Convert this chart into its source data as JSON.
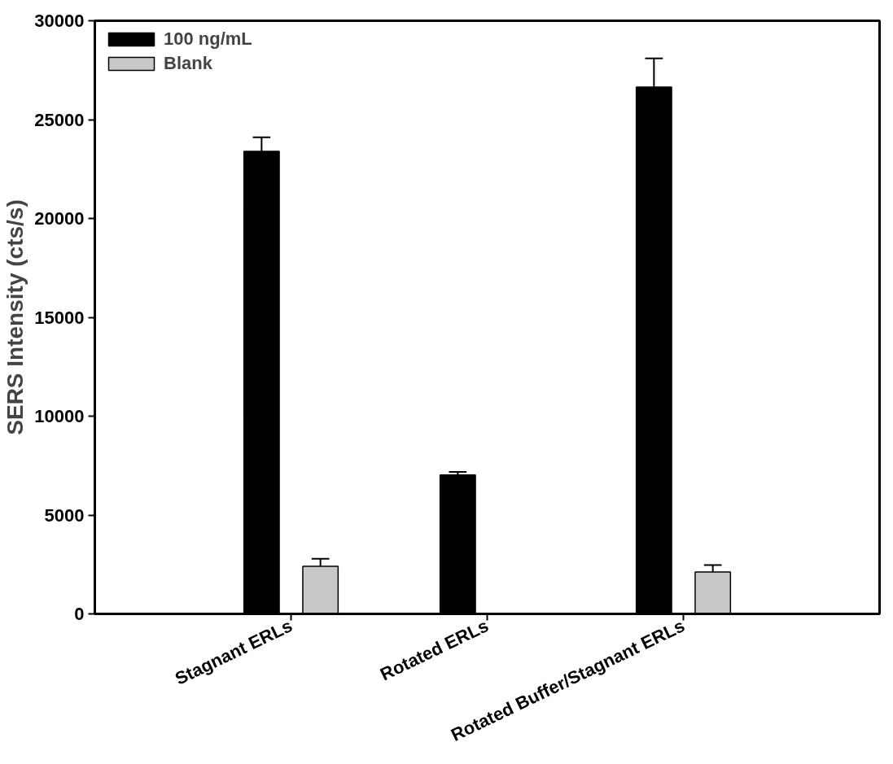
{
  "chart_data": {
    "type": "bar",
    "ylabel": "SERS Intensity (cts/s)",
    "categories": [
      "Stagnant ERLs",
      "Rotated ERLs",
      "Rotated Buffer/Stagnant ERLs"
    ],
    "series": [
      {
        "name": "100 ng/mL",
        "color": "#000000",
        "values": [
          23400,
          7030,
          26650
        ],
        "errors": [
          700,
          150,
          1450
        ]
      },
      {
        "name": "Blank",
        "color": "#c8c8c8",
        "values": [
          2410,
          null,
          2120
        ],
        "errors": [
          380,
          null,
          350
        ]
      }
    ],
    "ylim": [
      0,
      30000
    ],
    "yticks": [
      0,
      5000,
      10000,
      15000,
      20000,
      25000,
      30000
    ],
    "grid": false,
    "legend": "top left"
  }
}
